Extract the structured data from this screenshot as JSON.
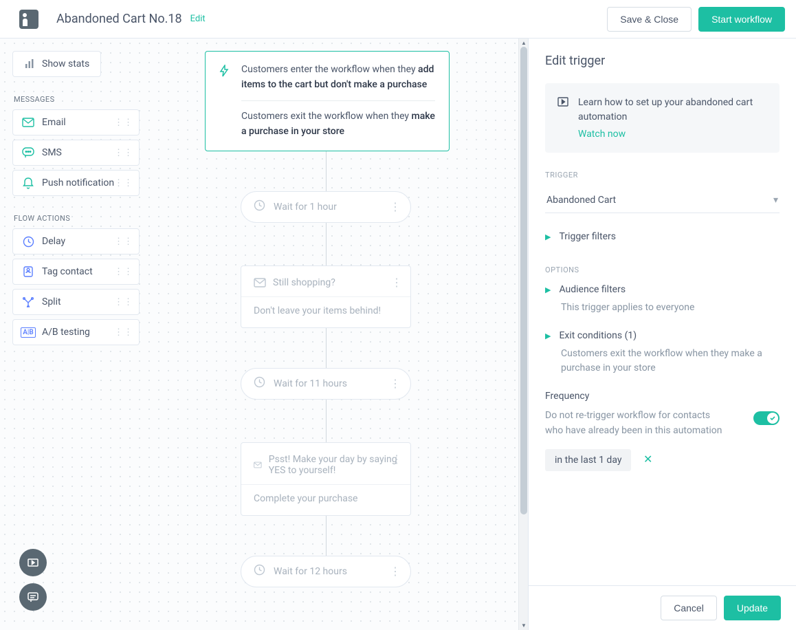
{
  "header": {
    "title": "Abandoned Cart No.18",
    "edit_label": "Edit",
    "save_close_label": "Save & Close",
    "start_label": "Start workflow"
  },
  "canvas": {
    "show_stats_label": "Show stats",
    "section_messages": "MESSAGES",
    "section_flow": "FLOW ACTIONS",
    "palette_messages": [
      {
        "label": "Email",
        "icon": "mail",
        "color": "#1dbfa3"
      },
      {
        "label": "SMS",
        "icon": "sms",
        "color": "#1dbfa3"
      },
      {
        "label": "Push notification",
        "icon": "bell",
        "color": "#1dbfa3"
      }
    ],
    "palette_flow": [
      {
        "label": "Delay",
        "icon": "clock",
        "color": "#5b7fff"
      },
      {
        "label": "Tag contact",
        "icon": "tag",
        "color": "#5b7fff"
      },
      {
        "label": "Split",
        "icon": "split",
        "color": "#5b7fff"
      },
      {
        "label": "A/B testing",
        "icon": "ab",
        "color": "#5b7fff"
      }
    ],
    "trigger": {
      "enter_prefix": "Customers enter the workflow when they ",
      "enter_bold": "add items to the cart but don't make a purchase",
      "exit_prefix": "Customers exit the workflow when they ",
      "exit_bold": "make a purchase in your store"
    },
    "steps": [
      {
        "type": "wait",
        "label_prefix": "Wait for ",
        "label_value": "1 hour"
      },
      {
        "type": "msg",
        "subject": "Still shopping?",
        "body": "Don't leave your items behind!"
      },
      {
        "type": "wait",
        "label_prefix": "Wait for ",
        "label_value": "11 hours"
      },
      {
        "type": "msg",
        "subject": "Psst! Make your day by saying YES to yourself!",
        "body": "Complete your purchase"
      },
      {
        "type": "wait",
        "label_prefix": "Wait for ",
        "label_value": "12 hours"
      }
    ]
  },
  "sidebar": {
    "title": "Edit trigger",
    "info_text": "Learn how to set up your abandoned cart automation",
    "info_link": "Watch now",
    "trigger_label": "TRIGGER",
    "trigger_value": "Abandoned Cart",
    "trigger_filters": "Trigger filters",
    "options_label": "OPTIONS",
    "audience_filters": "Audience filters",
    "audience_sub": "This trigger applies to everyone",
    "exit_conditions": "Exit conditions (1)",
    "exit_sub": "Customers exit the workflow when they make a purchase in your store",
    "frequency_title": "Frequency",
    "frequency_text": "Do not re-trigger workflow for contacts who have already been in this automation",
    "chip_text": "in the last 1 day",
    "cancel_label": "Cancel",
    "update_label": "Update"
  },
  "colors": {
    "accent": "#1dbfa3",
    "text": "#4a5568",
    "muted": "#9aa5b1",
    "border": "#e2e8f0"
  }
}
